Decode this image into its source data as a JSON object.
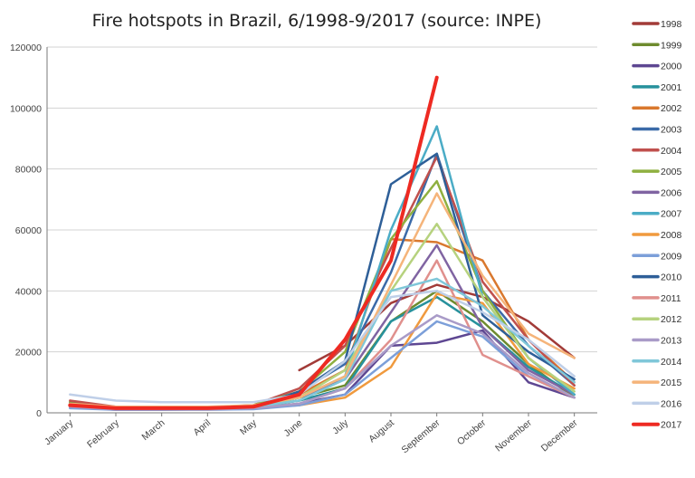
{
  "chart_data": {
    "type": "line",
    "title": "Fire hotspots in Brazil, 6/1998-9/2017 (source: INPE)",
    "xlabel": "",
    "ylabel": "",
    "ylim": [
      0,
      120000
    ],
    "yticks": [
      "0",
      "20000",
      "40000",
      "60000",
      "80000",
      "100000",
      "120000"
    ],
    "grid": true,
    "legend_position": "right",
    "categories": [
      "January",
      "February",
      "March",
      "April",
      "May",
      "June",
      "July",
      "August",
      "September",
      "October",
      "November",
      "December"
    ],
    "series": [
      {
        "name": "1998",
        "color": "#a23b38",
        "width": 2.5,
        "values": [
          null,
          null,
          null,
          null,
          null,
          14000,
          22000,
          36000,
          42000,
          38000,
          30000,
          18000
        ]
      },
      {
        "name": "1999",
        "color": "#6e8b2e",
        "width": 2.5,
        "values": [
          3500,
          1600,
          1500,
          1600,
          2200,
          5000,
          9000,
          30000,
          40000,
          30000,
          16000,
          5000
        ]
      },
      {
        "name": "2000",
        "color": "#5e4792",
        "width": 2.5,
        "values": [
          2000,
          1000,
          1000,
          1200,
          1500,
          3000,
          6000,
          22000,
          23000,
          27000,
          10000,
          5000
        ]
      },
      {
        "name": "2001",
        "color": "#27919c",
        "width": 2.5,
        "values": [
          2500,
          1200,
          1200,
          1300,
          1800,
          4000,
          8000,
          30000,
          38000,
          28000,
          15000,
          6000
        ]
      },
      {
        "name": "2002",
        "color": "#d9782e",
        "width": 2.5,
        "values": [
          2500,
          1500,
          1500,
          1400,
          2000,
          6000,
          14000,
          57000,
          56000,
          50000,
          24000,
          10000
        ]
      },
      {
        "name": "2003",
        "color": "#3b6aa8",
        "width": 2.5,
        "values": [
          3000,
          1600,
          1500,
          1500,
          2000,
          7000,
          16000,
          46000,
          85000,
          40000,
          22000,
          9000
        ]
      },
      {
        "name": "2004",
        "color": "#c0504d",
        "width": 2.5,
        "values": [
          4000,
          2000,
          2000,
          1800,
          2500,
          8000,
          22000,
          54000,
          84000,
          43000,
          24000,
          9000
        ]
      },
      {
        "name": "2005",
        "color": "#8fb040",
        "width": 2.5,
        "values": [
          3000,
          1800,
          1800,
          1700,
          2500,
          7000,
          20000,
          57000,
          76000,
          40000,
          18000,
          6000
        ]
      },
      {
        "name": "2006",
        "color": "#8064a2",
        "width": 2.5,
        "values": [
          2500,
          1500,
          1500,
          1500,
          2000,
          5000,
          11000,
          33000,
          55000,
          28000,
          14000,
          6000
        ]
      },
      {
        "name": "2007",
        "color": "#4bacc6",
        "width": 2.5,
        "values": [
          2000,
          1500,
          1500,
          1500,
          2000,
          5000,
          12000,
          60000,
          94000,
          38000,
          18000,
          6000
        ]
      },
      {
        "name": "2008",
        "color": "#f09a3e",
        "width": 2.5,
        "values": [
          2000,
          1200,
          1200,
          1300,
          1500,
          2500,
          5000,
          15000,
          39000,
          36000,
          16000,
          8000
        ]
      },
      {
        "name": "2009",
        "color": "#7c9fd9",
        "width": 2.5,
        "values": [
          1500,
          1000,
          1000,
          1000,
          1200,
          2500,
          6000,
          18000,
          30000,
          25000,
          12000,
          5000
        ]
      },
      {
        "name": "2010",
        "color": "#2e5f98",
        "width": 2.5,
        "values": [
          2500,
          1500,
          1500,
          1500,
          2000,
          7000,
          17000,
          75000,
          85000,
          32000,
          20000,
          11000
        ]
      },
      {
        "name": "2011",
        "color": "#e0908d",
        "width": 2.5,
        "values": [
          2000,
          1200,
          1200,
          1200,
          1500,
          3000,
          8000,
          24000,
          50000,
          19000,
          12000,
          5000
        ]
      },
      {
        "name": "2012",
        "color": "#b6d27e",
        "width": 2.5,
        "values": [
          2500,
          1500,
          1500,
          1500,
          2000,
          5000,
          14000,
          40000,
          62000,
          38000,
          18000,
          7000
        ]
      },
      {
        "name": "2013",
        "color": "#a99bc8",
        "width": 2.5,
        "values": [
          2000,
          1200,
          1200,
          1200,
          1500,
          3000,
          8000,
          22000,
          32000,
          26000,
          13000,
          5000
        ]
      },
      {
        "name": "2014",
        "color": "#7fc7d9",
        "width": 2.5,
        "values": [
          2500,
          1500,
          1500,
          1500,
          2000,
          4000,
          11000,
          40000,
          44000,
          35000,
          22000,
          10000
        ]
      },
      {
        "name": "2015",
        "color": "#f5b47a",
        "width": 2.5,
        "values": [
          3000,
          2000,
          2000,
          2000,
          2500,
          5000,
          12000,
          42000,
          72000,
          45000,
          26000,
          18000
        ]
      },
      {
        "name": "2016",
        "color": "#bfcfe8",
        "width": 2.5,
        "values": [
          6000,
          4000,
          3500,
          3500,
          3500,
          6000,
          17000,
          38000,
          40000,
          33000,
          24000,
          12000
        ]
      },
      {
        "name": "2017",
        "color": "#ee2a22",
        "width": 4,
        "values": [
          2500,
          1500,
          1500,
          1500,
          2000,
          6000,
          24000,
          50000,
          110000,
          null,
          null,
          null
        ]
      }
    ]
  }
}
